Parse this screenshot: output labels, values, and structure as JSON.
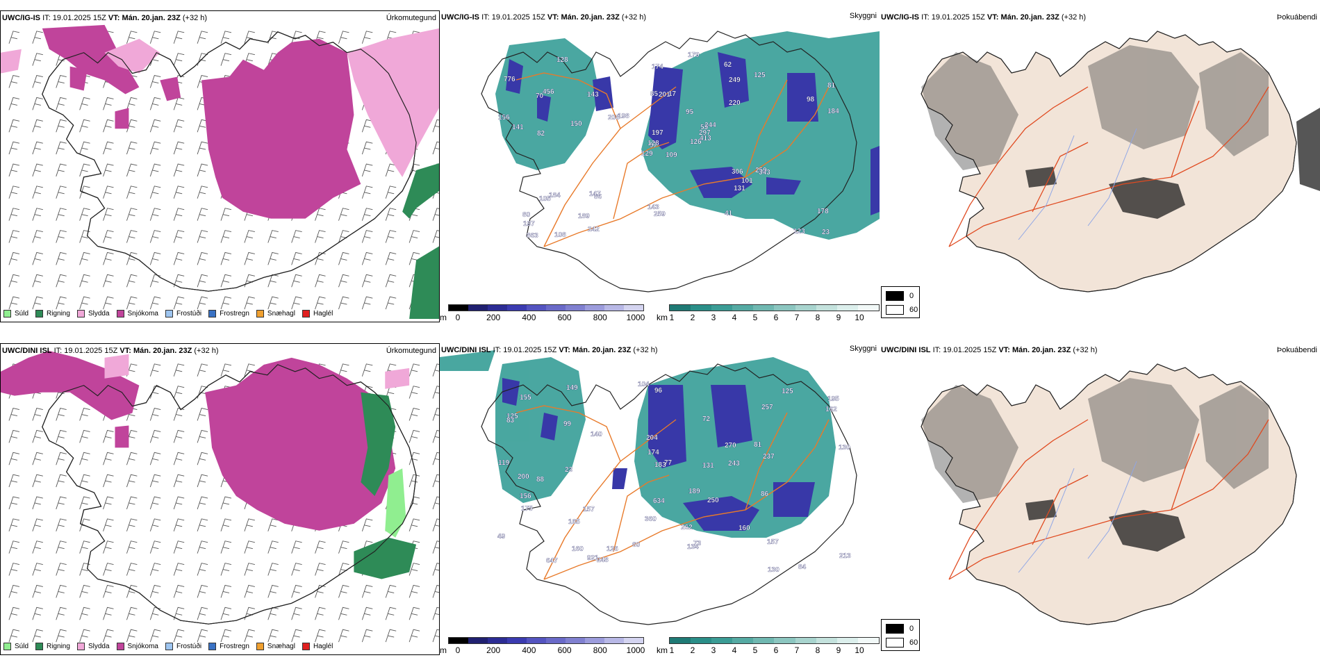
{
  "legend_items": [
    {
      "label": "Súld",
      "color": "#90ee90"
    },
    {
      "label": "Rigning",
      "color": "#2e8b57"
    },
    {
      "label": "Slydda",
      "color": "#f0a8d8"
    },
    {
      "label": "Snjókoma",
      "color": "#c0449b"
    },
    {
      "label": "Frostúði",
      "color": "#9ec5f0"
    },
    {
      "label": "Frostregn",
      "color": "#3a72c4"
    },
    {
      "label": "Snæhagl",
      "color": "#f0a030"
    },
    {
      "label": "Haglél",
      "color": "#e02020"
    }
  ],
  "colors": {
    "snow": "#c0449b",
    "sleet": "#f0a8d8",
    "rain": "#2e8b57",
    "drizzle": "#90ee90",
    "vis_teal": "#2a9890",
    "vis_blue": "#3838a8",
    "roads": "#e87a2a",
    "land_beige": "#f2e4d8",
    "rivers": "#8fa6e6"
  },
  "rows": [
    {
      "model": "UWC/IG-IS",
      "it_label": "IT:",
      "it_value": "19.01.2025 15Z",
      "vt_label": "VT:",
      "vt_value": "Mán. 20.jan. 23Z",
      "lead": "(+32 h)",
      "titles": [
        "Úrkomutegund",
        "Skyggni",
        "Þokuábendi"
      ],
      "height_labels": [
        "109",
        "70",
        "97",
        "80",
        "53",
        "86",
        "62",
        "17",
        "249",
        "126",
        "128",
        "23",
        "82",
        "81",
        "129",
        "220",
        "108",
        "85",
        "95",
        "184",
        "198",
        "197",
        "189",
        "201",
        "244",
        "343",
        "456",
        "174",
        "141",
        "306",
        "184",
        "128",
        "143",
        "197",
        "143",
        "125",
        "147",
        "123",
        "178",
        "259",
        "179",
        "208",
        "150",
        "131",
        "242",
        "156",
        "297",
        "863",
        "259",
        "413",
        "105",
        "98",
        "776",
        "101",
        "41"
      ]
    },
    {
      "model": "UWC/DINI ISL",
      "it_label": "IT:",
      "it_value": "19.01.2025 15Z",
      "vt_label": "VT:",
      "vt_value": "Mán. 20.jan. 23Z",
      "lead": "(+32 h)",
      "titles": [
        "Úrkomutegund",
        "Skyggni",
        "Þokuábendi"
      ],
      "height_labels": [
        "119",
        "96",
        "81",
        "195",
        "125",
        "84",
        "88",
        "72",
        "204",
        "125",
        "77",
        "86",
        "104",
        "83",
        "99",
        "165",
        "73",
        "200",
        "189",
        "360",
        "160",
        "157",
        "162",
        "174",
        "160",
        "183",
        "250",
        "149",
        "248",
        "134",
        "156",
        "130",
        "131",
        "647",
        "921",
        "175",
        "237",
        "155",
        "126",
        "140",
        "262",
        "243",
        "213",
        "130",
        "634",
        "157",
        "257",
        "49",
        "60",
        "23",
        "270"
      ]
    }
  ],
  "altitude_bar": {
    "unit": "m",
    "ticks": [
      "0",
      "200",
      "400",
      "600",
      "800",
      "1000"
    ]
  },
  "visibility_bar": {
    "unit": "km",
    "ticks": [
      "1",
      "2",
      "3",
      "4",
      "5",
      "6",
      "7",
      "8",
      "9",
      "10"
    ]
  },
  "fog_legend": {
    "values": [
      "0",
      "60"
    ]
  }
}
